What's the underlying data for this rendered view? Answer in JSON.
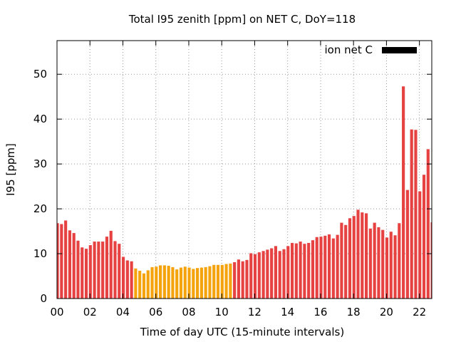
{
  "chart_data": {
    "type": "bar",
    "title": "Total I95 zenith [ppm] on NET C, DoY=118",
    "xlabel": "Time of day UTC (15-minute intervals)",
    "ylabel": "I95 [ppm]",
    "xlim": [
      0,
      22.75
    ],
    "ylim": [
      0,
      57.5
    ],
    "x_ticks": [
      "00",
      "02",
      "04",
      "06",
      "08",
      "10",
      "12",
      "14",
      "16",
      "18",
      "20",
      "22"
    ],
    "y_ticks": [
      "0",
      "10",
      "20",
      "30",
      "40",
      "50"
    ],
    "grid": true,
    "legend_position": "top-right",
    "series": [
      {
        "name": "ion net C",
        "legend_color": "#000000",
        "x": [
          0.0,
          0.25,
          0.5,
          0.75,
          1.0,
          1.25,
          1.5,
          1.75,
          2.0,
          2.25,
          2.5,
          2.75,
          3.0,
          3.25,
          3.5,
          3.75,
          4.0,
          4.25,
          4.5,
          4.75,
          5.0,
          5.25,
          5.5,
          5.75,
          6.0,
          6.25,
          6.5,
          6.75,
          7.0,
          7.25,
          7.5,
          7.75,
          8.0,
          8.25,
          8.5,
          8.75,
          9.0,
          9.25,
          9.5,
          9.75,
          10.0,
          10.25,
          10.5,
          10.75,
          11.0,
          11.25,
          11.5,
          11.75,
          12.0,
          12.25,
          12.5,
          12.75,
          13.0,
          13.25,
          13.5,
          13.75,
          14.0,
          14.25,
          14.5,
          14.75,
          15.0,
          15.25,
          15.5,
          15.75,
          16.0,
          16.25,
          16.5,
          16.75,
          17.0,
          17.25,
          17.5,
          17.75,
          18.0,
          18.25,
          18.5,
          18.75,
          19.0,
          19.25,
          19.5,
          19.75,
          20.0,
          20.25,
          20.5,
          20.75,
          21.0,
          21.25,
          21.5,
          21.75,
          22.0,
          22.25,
          22.5,
          22.75
        ],
        "values": [
          16.8,
          16.6,
          17.4,
          15.2,
          14.6,
          12.9,
          11.4,
          11.1,
          11.9,
          12.7,
          12.7,
          12.7,
          13.8,
          15.1,
          12.8,
          12.2,
          9.3,
          8.5,
          8.3,
          6.7,
          6.2,
          5.6,
          6.3,
          7.0,
          7.1,
          7.4,
          7.4,
          7.3,
          7.0,
          6.5,
          6.9,
          7.1,
          6.9,
          6.6,
          6.8,
          6.9,
          7.0,
          7.2,
          7.5,
          7.5,
          7.5,
          7.7,
          7.8,
          8.1,
          8.7,
          8.3,
          8.6,
          10.1,
          9.9,
          10.3,
          10.6,
          10.9,
          11.2,
          11.7,
          10.6,
          11.0,
          11.7,
          12.4,
          12.3,
          12.7,
          12.2,
          12.4,
          13.0,
          13.7,
          13.8,
          14.0,
          14.3,
          13.4,
          14.2,
          16.9,
          16.4,
          17.9,
          18.4,
          19.8,
          19.2,
          19.0,
          15.6,
          16.9,
          15.9,
          15.3,
          13.6,
          14.9,
          14.1,
          16.8,
          47.3,
          24.2,
          37.7,
          37.6,
          23.9,
          27.6,
          33.3,
          17.0
        ]
      }
    ],
    "bar_colors": [
      "#e74242",
      "#e74242",
      "#e74242",
      "#e74242",
      "#e74242",
      "#e74242",
      "#e74242",
      "#e74242",
      "#e74242",
      "#e74242",
      "#e74242",
      "#e74242",
      "#e74242",
      "#e74242",
      "#e74242",
      "#e74242",
      "#e74242",
      "#e74242",
      "#e74242",
      "#f4a30c",
      "#f4a30c",
      "#f4a30c",
      "#f4a30c",
      "#f4a30c",
      "#f4a30c",
      "#f4a30c",
      "#f4a30c",
      "#f4a30c",
      "#f4a30c",
      "#f4a30c",
      "#f4a30c",
      "#f4a30c",
      "#f4a30c",
      "#f4a30c",
      "#f4a30c",
      "#f4a30c",
      "#f4a30c",
      "#f4a30c",
      "#f4a30c",
      "#f4a30c",
      "#f4a30c",
      "#f4a30c",
      "#f4a30c",
      "#e74242",
      "#e74242",
      "#e74242",
      "#e74242",
      "#e74242",
      "#e74242",
      "#e74242",
      "#e74242",
      "#e74242",
      "#e74242",
      "#e74242",
      "#e74242",
      "#e74242",
      "#e74242",
      "#e74242",
      "#e74242",
      "#e74242",
      "#e74242",
      "#e74242",
      "#e74242",
      "#e74242",
      "#e74242",
      "#e74242",
      "#e74242",
      "#e74242",
      "#e74242",
      "#e74242",
      "#e74242",
      "#e74242",
      "#e74242",
      "#e74242",
      "#e74242",
      "#e74242",
      "#e74242",
      "#e74242",
      "#e74242",
      "#e74242",
      "#e74242",
      "#e74242",
      "#e74242",
      "#e74242",
      "#e74242",
      "#e74242",
      "#e74242",
      "#e74242",
      "#e74242",
      "#e74242",
      "#e74242",
      "#e74242"
    ]
  }
}
